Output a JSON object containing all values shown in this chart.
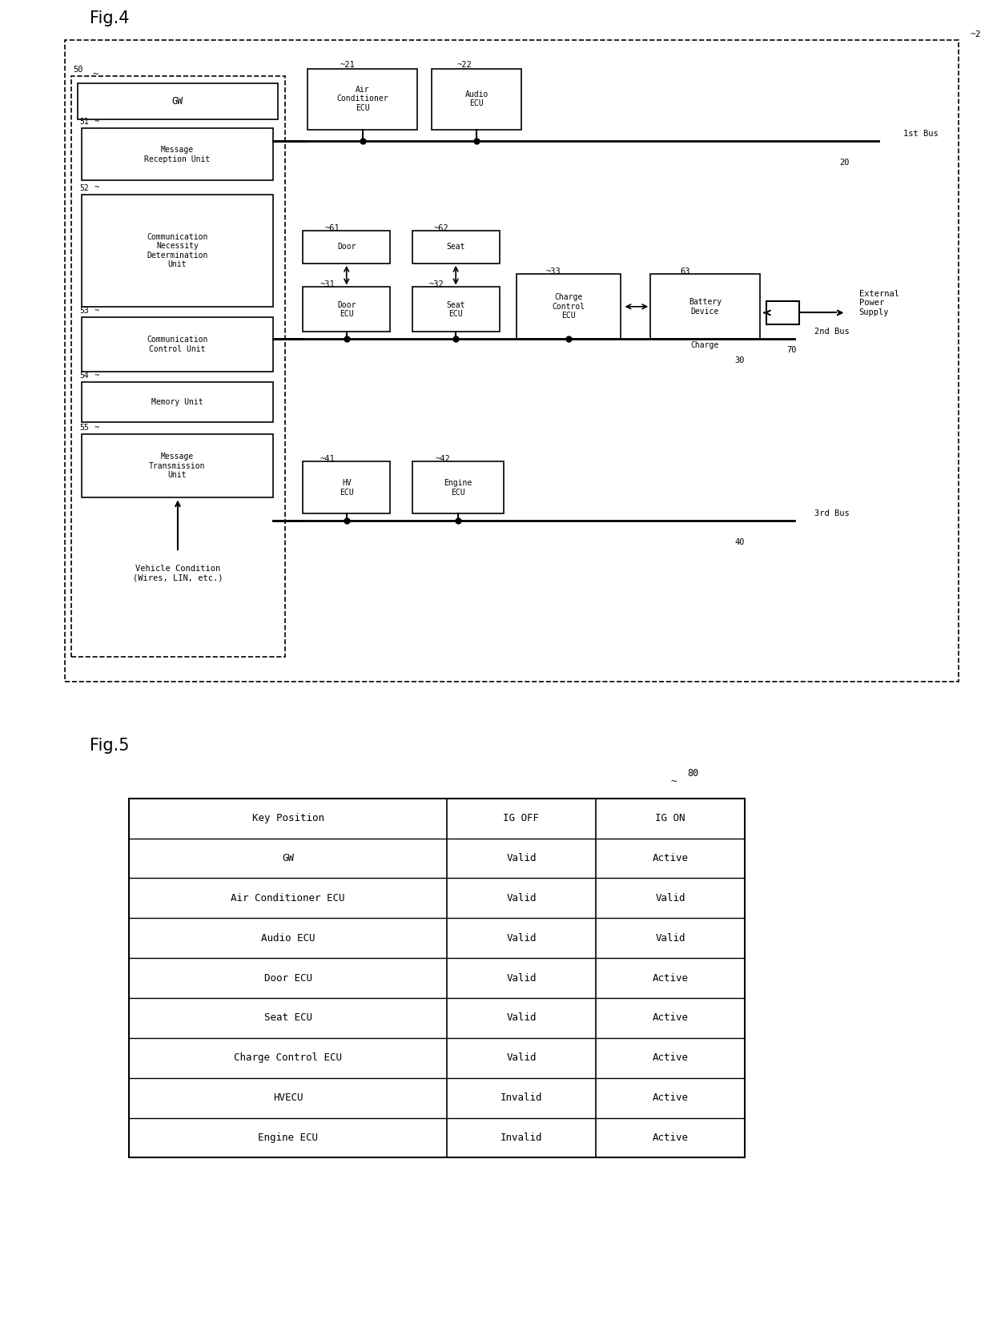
{
  "fig_title1": "Fig.4",
  "fig_title2": "Fig.5",
  "background_color": "#ffffff",
  "fig4": {
    "bus1_label": "1st Bus",
    "bus1_id": "20",
    "bus2_label": "2nd Bus",
    "bus2_id": "30",
    "bus3_label": "3rd Bus",
    "bus3_id": "40",
    "vehicle_condition": "Vehicle Condition\n(Wires, LIN, etc.)"
  },
  "fig5": {
    "table_label": "80",
    "header": [
      "Key Position",
      "IG OFF",
      "IG ON"
    ],
    "rows": [
      [
        "GW",
        "Valid",
        "Active"
      ],
      [
        "Air Conditioner ECU",
        "Valid",
        "Valid"
      ],
      [
        "Audio ECU",
        "Valid",
        "Valid"
      ],
      [
        "Door ECU",
        "Valid",
        "Active"
      ],
      [
        "Seat ECU",
        "Valid",
        "Active"
      ],
      [
        "Charge Control ECU",
        "Valid",
        "Active"
      ],
      [
        "HVECU",
        "Invalid",
        "Active"
      ],
      [
        "Engine ECU",
        "Invalid",
        "Active"
      ]
    ]
  }
}
